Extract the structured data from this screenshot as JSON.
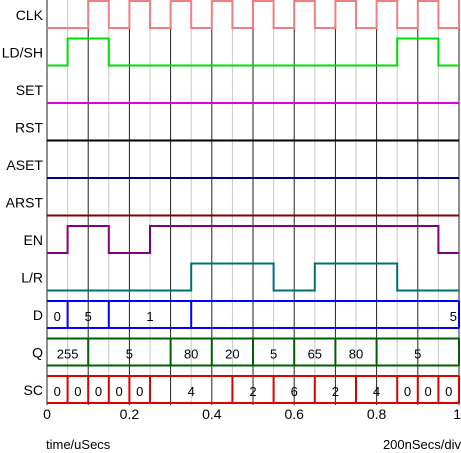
{
  "signals": [
    {
      "label": "CLK",
      "color": "#f08080",
      "type": "clock",
      "period": 0.1,
      "first_high": 0.1
    },
    {
      "label": "LD/SH",
      "color": "#00dd00",
      "type": "digital",
      "init": 0,
      "transitions": [
        0.05,
        0.15,
        0.85,
        0.95
      ]
    },
    {
      "label": "SET",
      "color": "#e000e0",
      "type": "digital",
      "init": 0,
      "transitions": []
    },
    {
      "label": "RST",
      "color": "#000000",
      "type": "digital",
      "init": 0,
      "transitions": []
    },
    {
      "label": "ASET",
      "color": "#000080",
      "type": "digital",
      "init": 0,
      "transitions": []
    },
    {
      "label": "ARST",
      "color": "#800000",
      "type": "digital",
      "init": 0,
      "transitions": []
    },
    {
      "label": "EN",
      "color": "#800080",
      "type": "digital",
      "init": 0,
      "transitions": [
        0.05,
        0.15,
        0.25,
        0.95
      ]
    },
    {
      "label": "L/R",
      "color": "#007070",
      "type": "digital",
      "init": 0,
      "transitions": [
        0.35,
        0.55,
        0.65,
        0.85
      ]
    },
    {
      "label": "D",
      "color": "#0000ff",
      "type": "bus",
      "segments": [
        {
          "from": 0.0,
          "to": 0.05,
          "value": "0"
        },
        {
          "from": 0.05,
          "to": 0.15,
          "value": "5"
        },
        {
          "from": 0.15,
          "to": 0.35,
          "value": "1"
        },
        {
          "from": 0.35,
          "to": 1.0,
          "value": "5"
        }
      ]
    },
    {
      "label": "Q",
      "color": "#006000",
      "type": "bus",
      "segments": [
        {
          "from": 0.0,
          "to": 0.1,
          "value": "255"
        },
        {
          "from": 0.1,
          "to": 0.3,
          "value": "5"
        },
        {
          "from": 0.3,
          "to": 0.4,
          "value": "80"
        },
        {
          "from": 0.4,
          "to": 0.5,
          "value": "20"
        },
        {
          "from": 0.5,
          "to": 0.6,
          "value": "5"
        },
        {
          "from": 0.6,
          "to": 0.7,
          "value": "65"
        },
        {
          "from": 0.7,
          "to": 0.8,
          "value": "80"
        },
        {
          "from": 0.8,
          "to": 1.0,
          "value": "5"
        }
      ]
    },
    {
      "label": "SC",
      "color": "#dd0000",
      "type": "bus",
      "segments": [
        {
          "from": 0.0,
          "to": 0.05,
          "value": "0"
        },
        {
          "from": 0.05,
          "to": 0.1,
          "value": "0"
        },
        {
          "from": 0.1,
          "to": 0.15,
          "value": "0"
        },
        {
          "from": 0.15,
          "to": 0.2,
          "value": "0"
        },
        {
          "from": 0.2,
          "to": 0.25,
          "value": "0"
        },
        {
          "from": 0.25,
          "to": 0.45,
          "value": "4"
        },
        {
          "from": 0.45,
          "to": 0.55,
          "value": "2"
        },
        {
          "from": 0.55,
          "to": 0.65,
          "value": "6"
        },
        {
          "from": 0.65,
          "to": 0.75,
          "value": "2"
        },
        {
          "from": 0.75,
          "to": 0.85,
          "value": "4"
        },
        {
          "from": 0.85,
          "to": 0.9,
          "value": "0"
        },
        {
          "from": 0.9,
          "to": 0.95,
          "value": "0"
        },
        {
          "from": 0.95,
          "to": 1.0,
          "value": "0"
        }
      ]
    }
  ],
  "time_ticks": [
    "0",
    "0.2",
    "0.4",
    "0.6",
    "0.8",
    "1"
  ],
  "time_range": [
    0,
    1
  ],
  "grid_major_step": 0.1,
  "grid_minor_step": 0.05,
  "colors": {
    "grid_major": "#222222",
    "grid_minor": "#c8c8c8",
    "background": "#ffffff"
  },
  "footer": {
    "left": "time/uSecs",
    "right": "200nSecs/div"
  }
}
